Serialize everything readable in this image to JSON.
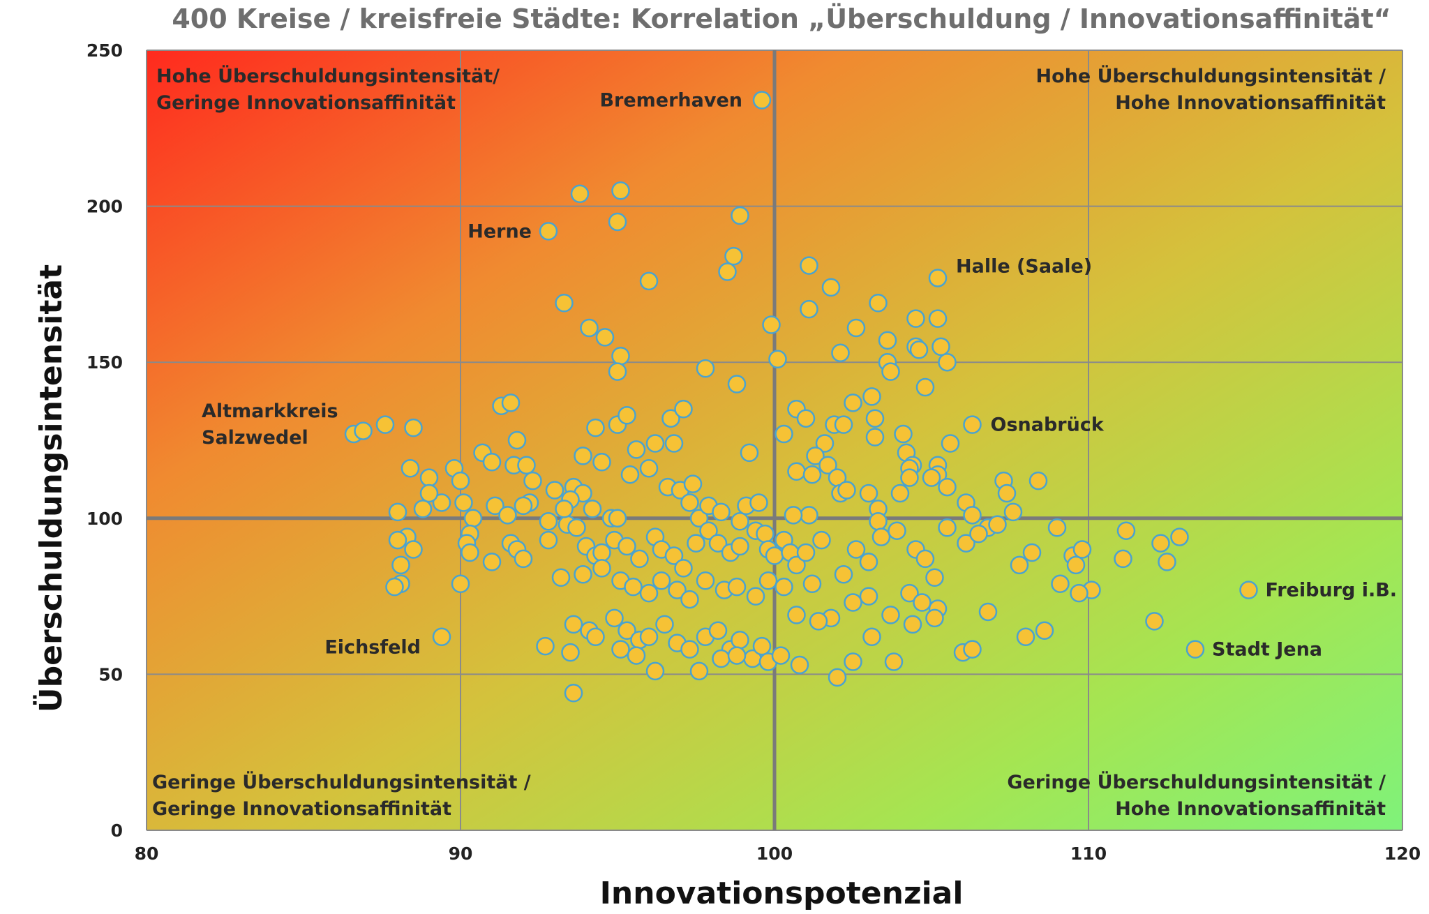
{
  "chart_data": {
    "type": "scatter",
    "title": "400 Kreise / kreisfreie Städte: Korrelation „Überschuldung / Innovationsaffinität“",
    "xlabel": "Innovationspotenzial",
    "ylabel": "Überschuldungsintensität",
    "xlim": [
      80,
      120
    ],
    "ylim": [
      0,
      250
    ],
    "xticks": [
      80,
      90,
      100,
      110,
      120
    ],
    "yticks": [
      0,
      50,
      100,
      150,
      200,
      250
    ],
    "grid": true,
    "reference_lines": {
      "x": 100,
      "y": 100
    },
    "background": "diagonal gradient from red (top-left) to green (bottom-right)",
    "colors": {
      "gradient_red": "#ff2a1e",
      "gradient_orange": "#f08a30",
      "gradient_yellow": "#d4c23c",
      "gradient_green": "#7ff27a",
      "point_fill": "#f6c235",
      "point_stroke": "#4aa3cf",
      "grid": "#8a8a8a"
    },
    "quadrant_labels": [
      {
        "position": "top-left",
        "lines": [
          "Hohe Überschuldungsintensität/",
          "Geringe Innovationsaffinität"
        ]
      },
      {
        "position": "top-right",
        "lines": [
          "Hohe Überschuldungsintensität /",
          "Hohe Innovationsaffinität"
        ]
      },
      {
        "position": "bottom-left",
        "lines": [
          "Geringe Überschuldungsintensität /",
          "Geringe Innovationsaffinität"
        ]
      },
      {
        "position": "bottom-right",
        "lines": [
          "Geringe Überschuldungsintensität /",
          "Hohe Innovationsaffinität"
        ]
      }
    ],
    "labeled_points": [
      {
        "label": "Bremerhaven",
        "x": 99.6,
        "y": 234
      },
      {
        "label": "Herne",
        "x": 92.8,
        "y": 192
      },
      {
        "label": "Halle (Saale)",
        "x": 105.2,
        "y": 177
      },
      {
        "label": "Altmarkkreis Salzwedel",
        "x": 86.6,
        "y": 127
      },
      {
        "label": "Osnabrück",
        "x": 106.3,
        "y": 130
      },
      {
        "label": "Eichsfeld",
        "x": 89.4,
        "y": 62
      },
      {
        "label": "Freiburg i.B.",
        "x": 115.1,
        "y": 77
      },
      {
        "label": "Stadt Jena",
        "x": 113.4,
        "y": 58
      }
    ],
    "points": [
      [
        99.6,
        234
      ],
      [
        92.8,
        192
      ],
      [
        105.2,
        177
      ],
      [
        86.6,
        127
      ],
      [
        86.9,
        128
      ],
      [
        87.6,
        130
      ],
      [
        88.5,
        129
      ],
      [
        106.3,
        130
      ],
      [
        89.4,
        62
      ],
      [
        115.1,
        77
      ],
      [
        113.4,
        58
      ],
      [
        93.8,
        204
      ],
      [
        95.1,
        205
      ],
      [
        95,
        195
      ],
      [
        98.9,
        197
      ],
      [
        96,
        176
      ],
      [
        98.7,
        184
      ],
      [
        98.5,
        179
      ],
      [
        93.3,
        169
      ],
      [
        94.1,
        161
      ],
      [
        94.6,
        158
      ],
      [
        95.1,
        152
      ],
      [
        95,
        147
      ],
      [
        99.9,
        162
      ],
      [
        100.1,
        151
      ],
      [
        101.1,
        181
      ],
      [
        101.8,
        174
      ],
      [
        101.1,
        167
      ],
      [
        102.6,
        161
      ],
      [
        102.1,
        153
      ],
      [
        103.3,
        169
      ],
      [
        103.6,
        157
      ],
      [
        103.6,
        150
      ],
      [
        103.7,
        147
      ],
      [
        104.5,
        155
      ],
      [
        104.6,
        154
      ],
      [
        104.5,
        164
      ],
      [
        105.2,
        164
      ],
      [
        105.3,
        155
      ],
      [
        105.5,
        150
      ],
      [
        104.8,
        142
      ],
      [
        97.8,
        148
      ],
      [
        98.8,
        143
      ],
      [
        91.3,
        136
      ],
      [
        91.6,
        137
      ],
      [
        94.3,
        129
      ],
      [
        95,
        130
      ],
      [
        95.3,
        133
      ],
      [
        96.7,
        132
      ],
      [
        97.1,
        135
      ],
      [
        96.8,
        124
      ],
      [
        96.2,
        124
      ],
      [
        95.6,
        122
      ],
      [
        99.2,
        121
      ],
      [
        100.7,
        135
      ],
      [
        101,
        132
      ],
      [
        100.3,
        127
      ],
      [
        101.6,
        124
      ],
      [
        101.3,
        120
      ],
      [
        101.9,
        130
      ],
      [
        102.2,
        130
      ],
      [
        102.5,
        137
      ],
      [
        103.1,
        139
      ],
      [
        103.2,
        132
      ],
      [
        103.2,
        126
      ],
      [
        104.1,
        127
      ],
      [
        104.2,
        121
      ],
      [
        104.4,
        117
      ],
      [
        104.3,
        116
      ],
      [
        105.6,
        124
      ],
      [
        105.2,
        117
      ],
      [
        105.2,
        114
      ],
      [
        105.5,
        110
      ],
      [
        88.4,
        116
      ],
      [
        89,
        113
      ],
      [
        89.8,
        116
      ],
      [
        90,
        112
      ],
      [
        90.7,
        121
      ],
      [
        91,
        118
      ],
      [
        91.8,
        125
      ],
      [
        91.7,
        117
      ],
      [
        92.1,
        117
      ],
      [
        92.3,
        112
      ],
      [
        92.2,
        105
      ],
      [
        93,
        109
      ],
      [
        93.4,
        98
      ],
      [
        94.5,
        118
      ],
      [
        93.9,
        120
      ],
      [
        93.6,
        110
      ],
      [
        93.9,
        108
      ],
      [
        93.5,
        106
      ],
      [
        93.3,
        103
      ],
      [
        94.2,
        103
      ],
      [
        94.8,
        100
      ],
      [
        95,
        100
      ],
      [
        95.4,
        114
      ],
      [
        96,
        116
      ],
      [
        96.6,
        110
      ],
      [
        97,
        109
      ],
      [
        97.4,
        111
      ],
      [
        97.3,
        105
      ],
      [
        97.6,
        100
      ],
      [
        97.9,
        104
      ],
      [
        98.3,
        102
      ],
      [
        98.9,
        99
      ],
      [
        99.1,
        104
      ],
      [
        99.5,
        105
      ],
      [
        100.7,
        115
      ],
      [
        101.2,
        114
      ],
      [
        101.7,
        117
      ],
      [
        102,
        113
      ],
      [
        102.1,
        108
      ],
      [
        101.1,
        101
      ],
      [
        100.6,
        101
      ],
      [
        102.3,
        109
      ],
      [
        103,
        108
      ],
      [
        103.3,
        103
      ],
      [
        103.3,
        99
      ],
      [
        104,
        108
      ],
      [
        104.3,
        113
      ],
      [
        105,
        113
      ],
      [
        106.1,
        105
      ],
      [
        106.3,
        101
      ],
      [
        106.8,
        97
      ],
      [
        107.1,
        98
      ],
      [
        107.3,
        112
      ],
      [
        107.4,
        108
      ],
      [
        107.6,
        102
      ],
      [
        108.4,
        112
      ],
      [
        88,
        102
      ],
      [
        88.8,
        103
      ],
      [
        89.4,
        105
      ],
      [
        89,
        108
      ],
      [
        90.1,
        105
      ],
      [
        90.4,
        100
      ],
      [
        91.1,
        104
      ],
      [
        91.5,
        101
      ],
      [
        92,
        104
      ],
      [
        92.8,
        99
      ],
      [
        88.3,
        94
      ],
      [
        88,
        93
      ],
      [
        88.5,
        90
      ],
      [
        88.1,
        85
      ],
      [
        88.1,
        79
      ],
      [
        87.9,
        78
      ],
      [
        90.3,
        95
      ],
      [
        90.2,
        92
      ],
      [
        90.3,
        89
      ],
      [
        91,
        86
      ],
      [
        91.6,
        92
      ],
      [
        91.8,
        90
      ],
      [
        92,
        87
      ],
      [
        92.8,
        93
      ],
      [
        93.7,
        97
      ],
      [
        94,
        91
      ],
      [
        94.3,
        88
      ],
      [
        94.5,
        89
      ],
      [
        94.9,
        93
      ],
      [
        95.3,
        91
      ],
      [
        95.7,
        87
      ],
      [
        96.2,
        94
      ],
      [
        96.4,
        90
      ],
      [
        96.8,
        88
      ],
      [
        97.1,
        84
      ],
      [
        97.5,
        92
      ],
      [
        97.9,
        96
      ],
      [
        98.2,
        92
      ],
      [
        98.6,
        89
      ],
      [
        98.9,
        91
      ],
      [
        99.4,
        96
      ],
      [
        99.7,
        95
      ],
      [
        99.8,
        90
      ],
      [
        100,
        88
      ],
      [
        100.3,
        93
      ],
      [
        100.5,
        89
      ],
      [
        100.7,
        85
      ],
      [
        101,
        89
      ],
      [
        101.5,
        93
      ],
      [
        102.2,
        82
      ],
      [
        102.6,
        90
      ],
      [
        103,
        86
      ],
      [
        103.4,
        94
      ],
      [
        103.9,
        96
      ],
      [
        104.5,
        90
      ],
      [
        104.8,
        87
      ],
      [
        105.1,
        81
      ],
      [
        105.5,
        97
      ],
      [
        106.1,
        92
      ],
      [
        106.5,
        95
      ],
      [
        107.8,
        85
      ],
      [
        108.2,
        89
      ],
      [
        109,
        97
      ],
      [
        109.5,
        88
      ],
      [
        109.8,
        90
      ],
      [
        109.6,
        85
      ],
      [
        110.1,
        77
      ],
      [
        111.2,
        96
      ],
      [
        111.1,
        87
      ],
      [
        112.3,
        92
      ],
      [
        112.5,
        86
      ],
      [
        112.9,
        94
      ],
      [
        90,
        79
      ],
      [
        93.2,
        81
      ],
      [
        93.9,
        82
      ],
      [
        94.5,
        84
      ],
      [
        95.1,
        80
      ],
      [
        95.5,
        78
      ],
      [
        96,
        76
      ],
      [
        96.4,
        80
      ],
      [
        96.9,
        77
      ],
      [
        97.3,
        74
      ],
      [
        97.8,
        80
      ],
      [
        98.4,
        77
      ],
      [
        98.8,
        78
      ],
      [
        99.4,
        75
      ],
      [
        99.8,
        80
      ],
      [
        100.3,
        78
      ],
      [
        100.7,
        69
      ],
      [
        101.2,
        79
      ],
      [
        101.8,
        68
      ],
      [
        102.5,
        73
      ],
      [
        103,
        75
      ],
      [
        103.7,
        69
      ],
      [
        104.3,
        76
      ],
      [
        104.7,
        73
      ],
      [
        105.2,
        71
      ],
      [
        106,
        57
      ],
      [
        106.3,
        58
      ],
      [
        106.8,
        70
      ],
      [
        108,
        62
      ],
      [
        108.6,
        64
      ],
      [
        109.1,
        79
      ],
      [
        109.7,
        76
      ],
      [
        112.1,
        67
      ],
      [
        93.6,
        66
      ],
      [
        94.1,
        64
      ],
      [
        94.9,
        68
      ],
      [
        95.3,
        64
      ],
      [
        95.7,
        61
      ],
      [
        96,
        62
      ],
      [
        96.5,
        66
      ],
      [
        96.9,
        60
      ],
      [
        97.3,
        58
      ],
      [
        97.8,
        62
      ],
      [
        98.2,
        64
      ],
      [
        98.6,
        58
      ],
      [
        98.9,
        61
      ],
      [
        99.3,
        55
      ],
      [
        99.6,
        59
      ],
      [
        99.8,
        54
      ],
      [
        100.2,
        56
      ],
      [
        100.8,
        53
      ],
      [
        101.4,
        67
      ],
      [
        102,
        49
      ],
      [
        102.5,
        54
      ],
      [
        103.1,
        62
      ],
      [
        103.8,
        54
      ],
      [
        104.4,
        66
      ],
      [
        105.1,
        68
      ],
      [
        92.7,
        59
      ],
      [
        93.5,
        57
      ],
      [
        93.6,
        44
      ],
      [
        94.3,
        62
      ],
      [
        95.1,
        58
      ],
      [
        95.6,
        56
      ],
      [
        96.2,
        51
      ],
      [
        97.6,
        51
      ],
      [
        98.3,
        55
      ],
      [
        98.8,
        56
      ]
    ]
  }
}
